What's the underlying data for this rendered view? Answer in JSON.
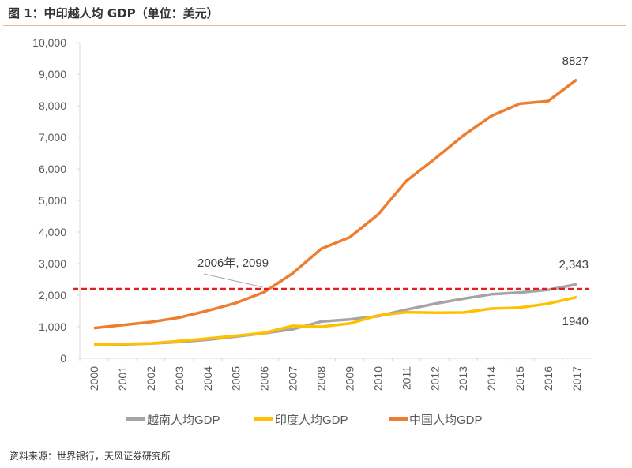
{
  "title": "图 1：中印越人均 GDP（单位：美元）",
  "source": "资料来源：世界银行，天风证券研究所",
  "chart_data": {
    "type": "line",
    "title": "",
    "xlabel": "",
    "ylabel": "",
    "ylim": [
      0,
      10000
    ],
    "yticks": [
      "0",
      "1,000",
      "2,000",
      "3,000",
      "4,000",
      "5,000",
      "6,000",
      "7,000",
      "8,000",
      "9,000",
      "10,000"
    ],
    "ytick_values": [
      0,
      1000,
      2000,
      3000,
      4000,
      5000,
      6000,
      7000,
      8000,
      9000,
      10000
    ],
    "categories": [
      "2000",
      "2001",
      "2002",
      "2003",
      "2004",
      "2005",
      "2006",
      "2007",
      "2008",
      "2009",
      "2010",
      "2011",
      "2012",
      "2013",
      "2014",
      "2015",
      "2016",
      "2017"
    ],
    "grid": false,
    "legend_position": "bottom",
    "series": [
      {
        "name": "越南人均GDP",
        "color": "#a5a5a5",
        "values": [
          430,
          440,
          470,
          520,
          590,
          690,
          797,
          919,
          1165,
          1232,
          1334,
          1543,
          1728,
          1887,
          2030,
          2085,
          2171,
          2343
        ]
      },
      {
        "name": "印度人均GDP",
        "color": "#ffc000",
        "values": [
          443,
          452,
          471,
          547,
          628,
          714,
          807,
          1028,
          999,
          1102,
          1358,
          1458,
          1444,
          1450,
          1574,
          1606,
          1733,
          1940
        ]
      },
      {
        "name": "中国人均GDP",
        "color": "#ed7d31",
        "values": [
          959,
          1053,
          1149,
          1289,
          1509,
          1753,
          2099,
          2694,
          3468,
          3832,
          4550,
          5618,
          6317,
          7051,
          7679,
          8067,
          8148,
          8827
        ]
      }
    ],
    "reference_line": {
      "value": 2200,
      "color": "#e02020",
      "style": "dashed"
    },
    "annotations": [
      {
        "text": "2006年, 2099",
        "x": "2006",
        "y": 2099
      },
      {
        "text": "8827",
        "x": "2017",
        "y": 8827
      },
      {
        "text": "2,343",
        "x": "2017",
        "y": 2343
      },
      {
        "text": "1940",
        "x": "2017",
        "y": 1940
      }
    ]
  }
}
